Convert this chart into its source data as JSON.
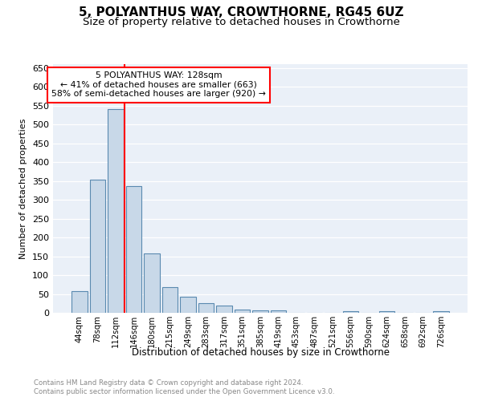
{
  "title": "5, POLYANTHUS WAY, CROWTHORNE, RG45 6UZ",
  "subtitle": "Size of property relative to detached houses in Crowthorne",
  "xlabel": "Distribution of detached houses by size in Crowthorne",
  "ylabel": "Number of detached properties",
  "footnote1": "Contains HM Land Registry data © Crown copyright and database right 2024.",
  "footnote2": "Contains public sector information licensed under the Open Government Licence v3.0.",
  "bar_labels": [
    "44sqm",
    "78sqm",
    "112sqm",
    "146sqm",
    "180sqm",
    "215sqm",
    "249sqm",
    "283sqm",
    "317sqm",
    "351sqm",
    "385sqm",
    "419sqm",
    "453sqm",
    "487sqm",
    "521sqm",
    "556sqm",
    "590sqm",
    "624sqm",
    "658sqm",
    "692sqm",
    "726sqm"
  ],
  "bar_values": [
    57,
    353,
    540,
    337,
    157,
    68,
    42,
    25,
    19,
    8,
    7,
    7,
    0,
    0,
    0,
    5,
    0,
    5,
    0,
    0,
    4
  ],
  "bar_color": "#c8d8e8",
  "bar_edge_color": "#5a8ab0",
  "red_line_index": 2,
  "annotation_text": "5 POLYANTHUS WAY: 128sqm\n← 41% of detached houses are smaller (663)\n58% of semi-detached houses are larger (920) →",
  "annotation_box_color": "white",
  "annotation_box_edge_color": "red",
  "red_line_color": "red",
  "ylim": [
    0,
    660
  ],
  "yticks": [
    0,
    50,
    100,
    150,
    200,
    250,
    300,
    350,
    400,
    450,
    500,
    550,
    600,
    650
  ],
  "background_color": "#eaf0f8",
  "grid_color": "white",
  "title_fontsize": 11,
  "subtitle_fontsize": 9.5,
  "footnote_color": "#888888"
}
